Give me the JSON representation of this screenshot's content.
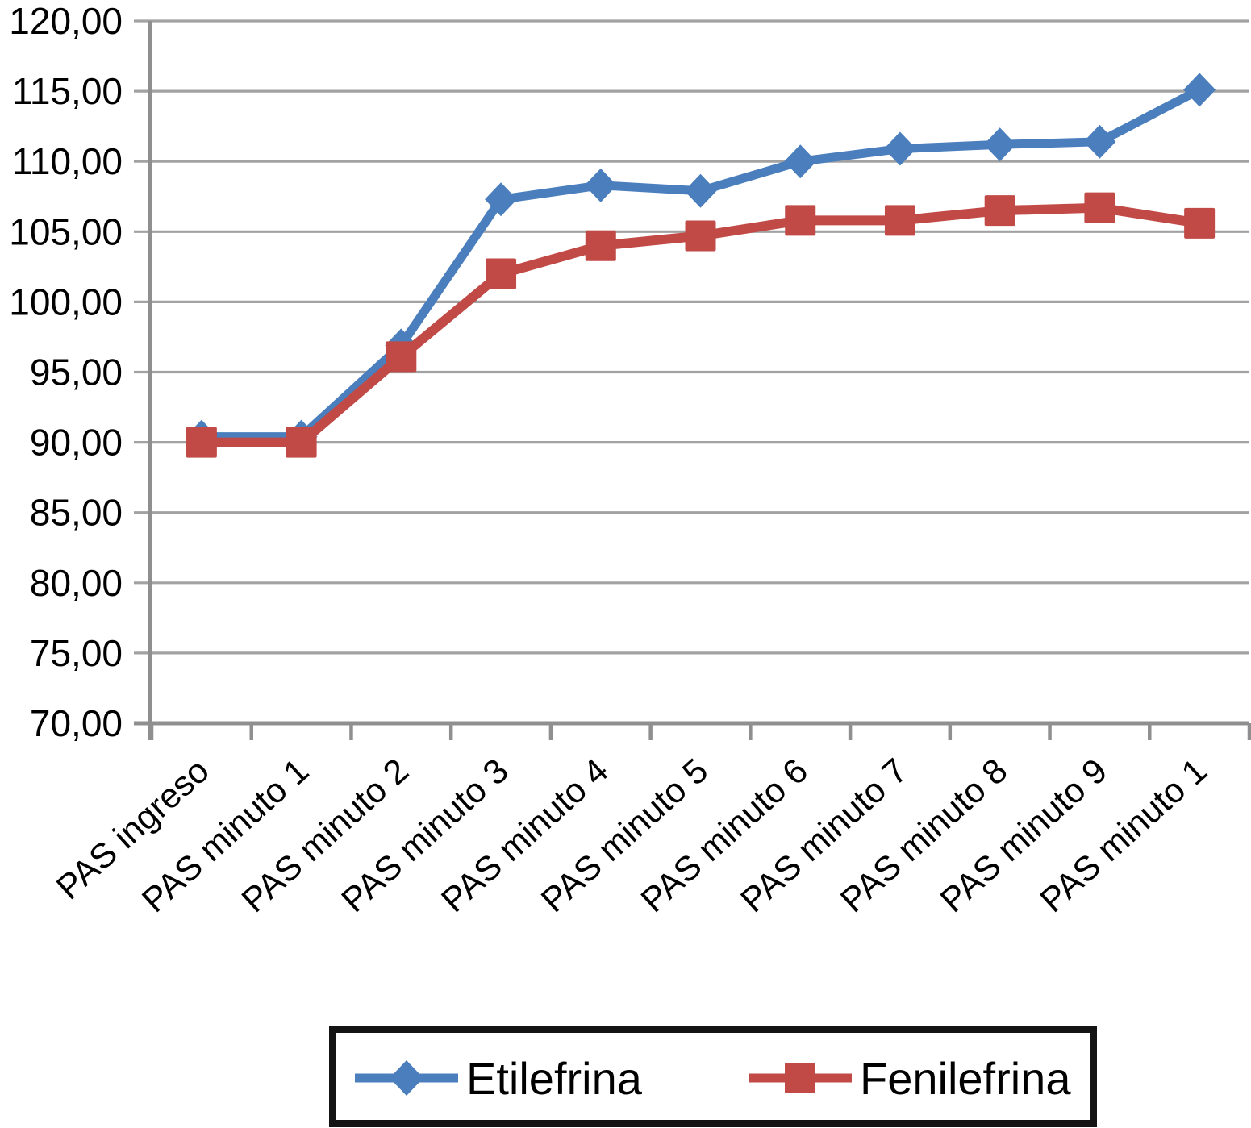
{
  "chart_data": {
    "type": "line",
    "title": "",
    "xlabel": "",
    "ylabel": "",
    "categories": [
      "PAS ingreso",
      "PAS minuto 1",
      "PAS minuto 2",
      "PAS minuto 3",
      "PAS minuto 4",
      "PAS minuto 5",
      "PAS minuto 6",
      "PAS minuto 7",
      "PAS minuto 8",
      "PAS minuto 9",
      "PAS minuto 1"
    ],
    "series": [
      {
        "name": "Etilefrina",
        "color": "#4a7ebd",
        "marker": "diamond",
        "values": [
          90.4,
          90.4,
          96.9,
          107.3,
          108.3,
          107.9,
          110.0,
          110.9,
          111.2,
          111.4,
          115.1
        ]
      },
      {
        "name": "Fenilefrina",
        "color": "#c14a46",
        "marker": "square",
        "values": [
          90.0,
          90.0,
          96.1,
          102.0,
          104.0,
          104.7,
          105.8,
          105.8,
          106.5,
          106.7,
          105.6
        ]
      }
    ],
    "ylim": [
      70,
      120
    ],
    "y_tick_step": 5,
    "y_tick_labels": [
      "70,00",
      "75,00",
      "80,00",
      "85,00",
      "90,00",
      "95,00",
      "100,00",
      "105,00",
      "110,00",
      "115,00",
      "120,00"
    ],
    "grid": true,
    "legend_position": "bottom",
    "grid_color": "#a2a2a2",
    "axis_color": "#8f8f8f",
    "text_color": "#000000"
  },
  "legend": {
    "items": [
      {
        "label": "Etilefrina"
      },
      {
        "label": "Fenilefrina"
      }
    ]
  }
}
